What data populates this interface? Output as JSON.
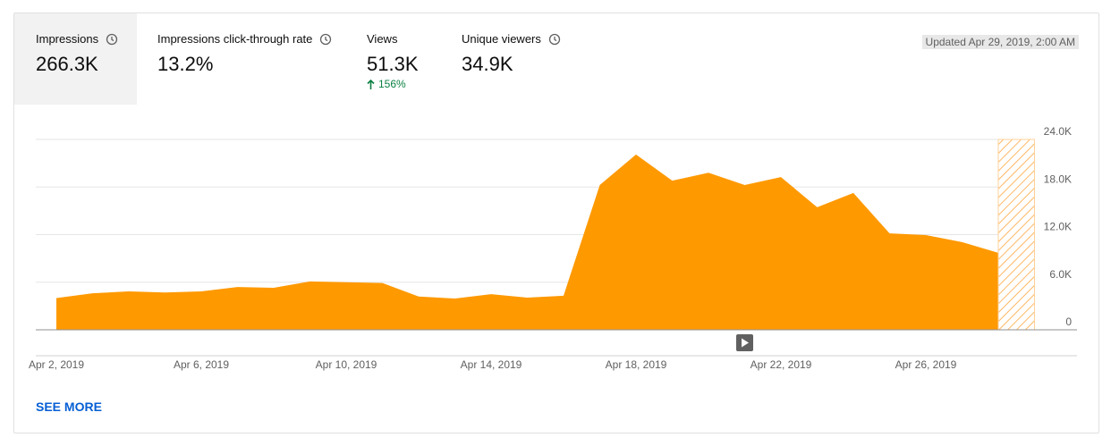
{
  "metrics": [
    {
      "label": "Impressions",
      "value": "266.3K"
    },
    {
      "label": "Impressions click-through rate",
      "value": "13.2%"
    },
    {
      "label": "Views",
      "value": "51.3K",
      "change": "156%"
    },
    {
      "label": "Unique viewers",
      "value": "34.9K"
    }
  ],
  "updated": "Updated Apr 29, 2019, 2:00 AM",
  "see_more": "SEE MORE",
  "chart_data": {
    "type": "area",
    "color": "#ff9900",
    "x": [
      "2019-04-02",
      "2019-04-03",
      "2019-04-04",
      "2019-04-05",
      "2019-04-06",
      "2019-04-07",
      "2019-04-08",
      "2019-04-09",
      "2019-04-10",
      "2019-04-11",
      "2019-04-12",
      "2019-04-13",
      "2019-04-14",
      "2019-04-15",
      "2019-04-16",
      "2019-04-17",
      "2019-04-18",
      "2019-04-19",
      "2019-04-20",
      "2019-04-21",
      "2019-04-22",
      "2019-04-23",
      "2019-04-24",
      "2019-04-25",
      "2019-04-26",
      "2019-04-27",
      "2019-04-28"
    ],
    "values": [
      4000,
      4600,
      4850,
      4700,
      4850,
      5400,
      5300,
      6100,
      6000,
      5900,
      4200,
      3950,
      4500,
      4050,
      4300,
      18250,
      22100,
      18800,
      19800,
      18250,
      19250,
      15450,
      17250,
      12150,
      11950,
      11050,
      9700
    ],
    "xticks": [
      {
        "value": "2019-04-02",
        "label": "Apr 2, 2019"
      },
      {
        "value": "2019-04-06",
        "label": "Apr 6, 2019"
      },
      {
        "value": "2019-04-10",
        "label": "Apr 10, 2019"
      },
      {
        "value": "2019-04-14",
        "label": "Apr 14, 2019"
      },
      {
        "value": "2019-04-18",
        "label": "Apr 18, 2019"
      },
      {
        "value": "2019-04-22",
        "label": "Apr 22, 2019"
      },
      {
        "value": "2019-04-26",
        "label": "Apr 26, 2019"
      }
    ],
    "ylim": [
      0,
      24000
    ],
    "yticks": [
      0,
      {
        "value": 6000,
        "label": "6.0K"
      },
      {
        "value": 12000,
        "label": "12.0K"
      },
      {
        "value": 18000,
        "label": "18.0K"
      },
      {
        "value": 24000,
        "label": "24.0K"
      }
    ],
    "grid": true
  }
}
